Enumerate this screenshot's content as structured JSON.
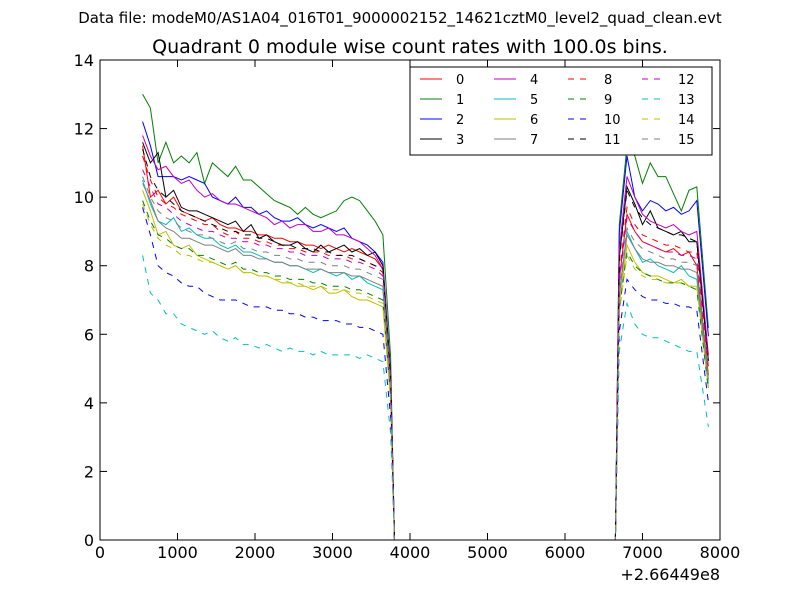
{
  "chart_data": {
    "type": "line",
    "suptitle": "Data file: modeM0/AS1A04_016T01_9000002152_14621cztM0_level2_quad_clean.evt",
    "title": "Quadrant 0 module wise count rates with 100.0s bins.",
    "xlabel": "",
    "ylabel": "",
    "x_offset_label": "+2.66449e8",
    "xlim": [
      0,
      8000
    ],
    "ylim": [
      0,
      14
    ],
    "xticks": [
      0,
      1000,
      2000,
      3000,
      4000,
      5000,
      6000,
      7000,
      8000
    ],
    "yticks": [
      0,
      2,
      4,
      6,
      8,
      10,
      12,
      14
    ],
    "grid": false,
    "legend_position": "top-right",
    "legend_columns": 4,
    "segments": [
      {
        "x_start": 550,
        "x_end": 3650,
        "dx": 100,
        "edge_x": [
          3650,
          3750
        ],
        "edge_frac": [
          0.6,
          0.0
        ]
      },
      {
        "x_start": 6800,
        "x_end": 7750,
        "dx": 100,
        "rise_x": [
          6650,
          6700
        ],
        "rise_frac": [
          0.0,
          0.8
        ],
        "edge_x": [
          7750,
          7850
        ],
        "edge_frac": [
          1.0,
          0.6
        ]
      }
    ],
    "gap": {
      "x_start": 3750,
      "x_end": 6650,
      "value": 0
    },
    "series": [
      {
        "name": "0",
        "color": "#ff0000",
        "dash": "solid",
        "seg1": [
          11.5,
          10.0,
          10.2,
          9.8,
          10.0,
          9.6,
          9.5,
          9.4,
          9.3,
          9.4,
          9.2,
          9.1,
          9.1,
          9.0,
          9.0,
          8.9,
          8.9,
          8.8,
          8.8,
          8.7,
          8.7,
          8.6,
          8.6,
          8.5,
          8.6,
          8.5,
          8.4,
          8.5,
          8.4,
          8.3,
          8.2,
          7.9
        ],
        "seg2": [
          9.5,
          9.0,
          8.7,
          8.6,
          8.5,
          8.4,
          8.5,
          8.3,
          8.4,
          8.0
        ]
      },
      {
        "name": "1",
        "color": "#008000",
        "dash": "solid",
        "seg1": [
          13.0,
          12.6,
          11.0,
          11.6,
          11.0,
          11.2,
          11.0,
          11.3,
          10.4,
          11.0,
          10.8,
          10.6,
          10.9,
          10.5,
          10.5,
          10.3,
          10.1,
          9.9,
          9.8,
          9.7,
          9.5,
          9.7,
          9.5,
          9.4,
          9.5,
          9.6,
          9.9,
          10.0,
          9.9,
          9.6,
          9.3,
          8.9
        ],
        "seg2": [
          11.5,
          11.2,
          10.4,
          11.0,
          10.6,
          10.6,
          10.1,
          9.6,
          10.2,
          10.3
        ]
      },
      {
        "name": "2",
        "color": "#0000ff",
        "dash": "solid",
        "seg1": [
          12.2,
          11.5,
          10.6,
          10.6,
          10.6,
          10.5,
          10.6,
          10.5,
          10.4,
          10.0,
          9.9,
          9.8,
          10.0,
          9.7,
          9.7,
          9.5,
          9.6,
          9.4,
          9.3,
          9.3,
          9.4,
          9.2,
          9.1,
          9.2,
          9.1,
          9.0,
          9.1,
          8.8,
          8.7,
          8.6,
          8.4,
          8.1
        ],
        "seg2": [
          11.2,
          10.0,
          9.6,
          9.9,
          9.8,
          9.6,
          9.7,
          9.5,
          9.6,
          9.9
        ]
      },
      {
        "name": "3",
        "color": "#000000",
        "dash": "solid",
        "seg1": [
          11.6,
          11.0,
          11.3,
          10.0,
          10.2,
          9.7,
          9.6,
          9.6,
          9.5,
          9.4,
          9.3,
          9.2,
          9.3,
          9.0,
          9.2,
          8.8,
          8.9,
          8.7,
          8.6,
          8.6,
          8.7,
          8.5,
          8.4,
          8.6,
          8.4,
          8.5,
          8.6,
          8.4,
          8.5,
          8.3,
          8.4,
          8.0
        ],
        "seg2": [
          10.3,
          9.8,
          9.2,
          9.6,
          9.1,
          9.0,
          8.9,
          9.0,
          8.7,
          8.7
        ]
      },
      {
        "name": "4",
        "color": "#bf00bf",
        "dash": "solid",
        "seg1": [
          11.8,
          11.2,
          10.8,
          10.9,
          10.6,
          10.4,
          10.5,
          10.2,
          10.0,
          10.1,
          9.9,
          9.8,
          9.8,
          9.7,
          9.6,
          9.5,
          9.4,
          9.2,
          9.3,
          9.1,
          9.2,
          9.2,
          9.0,
          9.0,
          9.1,
          8.9,
          8.9,
          8.8,
          8.7,
          8.5,
          8.3,
          7.9
        ],
        "seg2": [
          10.6,
          10.0,
          9.5,
          9.3,
          9.2,
          9.1,
          9.2,
          9.0,
          8.9,
          9.0
        ]
      },
      {
        "name": "5",
        "color": "#00bfbf",
        "dash": "solid",
        "seg1": [
          10.5,
          9.8,
          9.3,
          9.2,
          9.4,
          9.0,
          9.1,
          8.9,
          8.8,
          8.8,
          8.6,
          8.5,
          8.6,
          8.4,
          8.4,
          8.3,
          8.2,
          8.1,
          8.1,
          8.0,
          8.0,
          7.9,
          7.8,
          7.9,
          7.8,
          7.7,
          7.8,
          7.6,
          7.7,
          7.5,
          7.4,
          7.3
        ],
        "seg2": [
          9.0,
          8.5,
          8.1,
          8.2,
          8.0,
          7.9,
          7.8,
          8.0,
          7.7,
          7.6
        ]
      },
      {
        "name": "6",
        "color": "#bfbf00",
        "dash": "solid",
        "seg1": [
          10.2,
          9.6,
          8.9,
          9.0,
          8.6,
          8.5,
          8.6,
          8.3,
          8.2,
          8.1,
          8.0,
          7.9,
          8.0,
          7.8,
          7.8,
          7.7,
          7.7,
          7.6,
          7.5,
          7.5,
          7.4,
          7.4,
          7.3,
          7.4,
          7.2,
          7.2,
          7.3,
          7.1,
          7.0,
          7.0,
          6.9,
          6.8
        ],
        "seg2": [
          8.6,
          8.1,
          7.8,
          7.7,
          7.7,
          7.6,
          7.5,
          7.6,
          7.4,
          7.4
        ]
      },
      {
        "name": "7",
        "color": "#7f7f7f",
        "dash": "solid",
        "seg1": [
          10.4,
          9.9,
          9.3,
          9.1,
          9.0,
          8.8,
          8.8,
          8.7,
          8.6,
          8.6,
          8.5,
          8.4,
          8.5,
          8.3,
          8.3,
          8.2,
          8.2,
          8.1,
          8.1,
          8.0,
          8.0,
          7.9,
          7.9,
          7.9,
          7.8,
          7.8,
          7.8,
          7.7,
          7.7,
          7.6,
          7.5,
          7.4
        ],
        "seg2": [
          8.9,
          8.5,
          8.2,
          8.1,
          8.1,
          8.0,
          8.0,
          7.9,
          7.9,
          7.8
        ]
      },
      {
        "name": "8",
        "color": "#ff0000",
        "dash": "dashed",
        "seg1": [
          11.2,
          10.5,
          10.0,
          9.8,
          9.7,
          9.5,
          9.4,
          9.3,
          9.2,
          9.2,
          9.0,
          8.9,
          9.0,
          8.8,
          8.8,
          8.7,
          8.7,
          8.6,
          8.6,
          8.5,
          8.5,
          8.4,
          8.4,
          8.4,
          8.3,
          8.3,
          8.3,
          8.2,
          8.2,
          8.1,
          8.0,
          7.8
        ],
        "seg2": [
          9.7,
          9.2,
          8.9,
          8.8,
          8.7,
          8.6,
          8.6,
          8.5,
          8.4,
          8.4
        ]
      },
      {
        "name": "9",
        "color": "#008000",
        "dash": "dashed",
        "seg1": [
          9.9,
          9.3,
          8.9,
          8.8,
          8.6,
          8.5,
          8.5,
          8.3,
          8.3,
          8.2,
          8.1,
          8.0,
          8.1,
          7.9,
          7.9,
          7.8,
          7.8,
          7.7,
          7.7,
          7.6,
          7.6,
          7.6,
          7.5,
          7.5,
          7.4,
          7.4,
          7.4,
          7.3,
          7.3,
          7.2,
          7.1,
          7.0
        ],
        "seg2": [
          8.4,
          8.0,
          7.8,
          7.7,
          7.6,
          7.5,
          7.5,
          7.5,
          7.4,
          7.3
        ]
      },
      {
        "name": "10",
        "color": "#0000ff",
        "dash": "dashed",
        "seg1": [
          9.7,
          8.9,
          8.0,
          7.8,
          7.7,
          7.5,
          7.4,
          7.4,
          7.2,
          7.1,
          7.0,
          7.0,
          7.0,
          6.9,
          6.8,
          6.8,
          6.8,
          6.7,
          6.7,
          6.6,
          6.6,
          6.5,
          6.5,
          6.4,
          6.4,
          6.4,
          6.3,
          6.3,
          6.2,
          6.2,
          6.1,
          6.0
        ],
        "seg2": [
          7.6,
          7.3,
          7.1,
          7.0,
          7.0,
          6.9,
          6.9,
          6.8,
          6.8,
          6.7
        ]
      },
      {
        "name": "11",
        "color": "#000000",
        "dash": "dashed",
        "seg1": [
          11.4,
          10.6,
          10.2,
          10.0,
          9.8,
          9.6,
          9.5,
          9.4,
          9.3,
          9.2,
          9.1,
          9.0,
          9.0,
          8.9,
          8.9,
          8.8,
          8.8,
          8.7,
          8.6,
          8.6,
          8.5,
          8.5,
          8.5,
          8.4,
          8.4,
          8.3,
          8.3,
          8.3,
          8.2,
          8.1,
          8.0,
          7.9
        ],
        "seg2": [
          10.2,
          9.7,
          9.4,
          9.2,
          9.1,
          9.0,
          8.9,
          8.9,
          8.8,
          8.7
        ]
      },
      {
        "name": "12",
        "color": "#bf00bf",
        "dash": "dashed",
        "seg1": [
          10.8,
          10.3,
          9.8,
          9.7,
          9.5,
          9.3,
          9.2,
          9.1,
          9.0,
          9.0,
          8.9,
          8.8,
          8.8,
          8.7,
          8.7,
          8.6,
          8.6,
          8.5,
          8.5,
          8.4,
          8.4,
          8.3,
          8.3,
          8.3,
          8.2,
          8.2,
          8.2,
          8.1,
          8.1,
          8.0,
          7.9,
          7.7
        ],
        "seg2": [
          9.4,
          9.0,
          8.7,
          8.6,
          8.5,
          8.4,
          8.4,
          8.3,
          8.3,
          8.2
        ]
      },
      {
        "name": "13",
        "color": "#00bfbf",
        "dash": "dashed",
        "seg1": [
          8.3,
          7.2,
          7.0,
          6.6,
          6.6,
          6.3,
          6.2,
          6.1,
          6.0,
          6.1,
          5.9,
          5.8,
          5.9,
          5.7,
          5.7,
          5.6,
          5.7,
          5.6,
          5.5,
          5.6,
          5.5,
          5.5,
          5.4,
          5.5,
          5.4,
          5.4,
          5.4,
          5.4,
          5.3,
          5.4,
          5.3,
          5.2
        ],
        "seg2": [
          6.9,
          6.3,
          6.0,
          5.9,
          5.9,
          5.8,
          5.7,
          5.6,
          5.5,
          5.5
        ]
      },
      {
        "name": "14",
        "color": "#bfbf00",
        "dash": "dashed",
        "seg1": [
          9.8,
          9.2,
          8.8,
          8.6,
          8.5,
          8.3,
          8.3,
          8.2,
          8.1,
          8.1,
          8.0,
          7.9,
          8.0,
          7.8,
          7.8,
          7.7,
          7.7,
          7.6,
          7.6,
          7.5,
          7.5,
          7.4,
          7.4,
          7.4,
          7.3,
          7.3,
          7.3,
          7.2,
          7.2,
          7.1,
          7.0,
          6.9
        ],
        "seg2": [
          8.3,
          7.9,
          7.7,
          7.6,
          7.6,
          7.5,
          7.5,
          7.5,
          7.4,
          7.4
        ]
      },
      {
        "name": "15",
        "color": "#7f7f7f",
        "dash": "dashed",
        "seg1": [
          10.6,
          10.0,
          9.6,
          9.4,
          9.3,
          9.1,
          9.0,
          8.9,
          8.9,
          8.8,
          8.7,
          8.6,
          8.7,
          8.5,
          8.5,
          8.4,
          8.4,
          8.3,
          8.3,
          8.2,
          8.2,
          8.1,
          8.1,
          8.1,
          8.0,
          8.0,
          8.0,
          7.9,
          7.9,
          7.8,
          7.7,
          7.6
        ],
        "seg2": [
          9.1,
          8.7,
          8.5,
          8.4,
          8.3,
          8.2,
          8.2,
          8.1,
          8.1,
          8.0
        ]
      }
    ]
  }
}
